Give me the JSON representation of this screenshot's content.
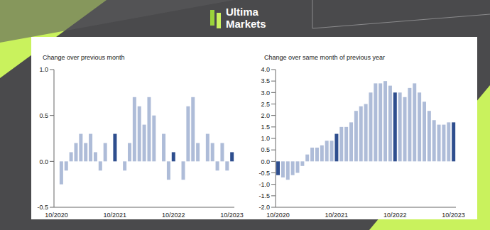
{
  "brand": "Ultima Markets",
  "chart_data": [
    {
      "type": "bar",
      "title": "Change over previous month",
      "categories": [
        "10/2020",
        null,
        null,
        null,
        null,
        null,
        null,
        null,
        null,
        null,
        null,
        null,
        "10/2021",
        null,
        null,
        null,
        null,
        null,
        null,
        null,
        null,
        null,
        null,
        null,
        "10/2022",
        null,
        null,
        null,
        null,
        null,
        null,
        null,
        null,
        null,
        null,
        null,
        "10/2023"
      ],
      "values": [
        0,
        -0.25,
        -0.1,
        0.1,
        0.2,
        0.3,
        0.2,
        0.3,
        0.1,
        -0.1,
        0.2,
        0,
        0.3,
        0,
        -0.1,
        0.2,
        0.7,
        0.6,
        0.4,
        0.7,
        0.5,
        0,
        0.3,
        -0.2,
        0.1,
        0,
        -0.2,
        0.6,
        0.7,
        0.2,
        0,
        0.3,
        0.2,
        -0.1,
        0.2,
        -0.1,
        0.1
      ],
      "colors": [
        "#2e4e8e",
        "#aebcd8",
        "#aebcd8",
        "#aebcd8",
        "#aebcd8",
        "#aebcd8",
        "#aebcd8",
        "#aebcd8",
        "#aebcd8",
        "#aebcd8",
        "#aebcd8",
        "#aebcd8",
        "#2e4e8e",
        "#aebcd8",
        "#aebcd8",
        "#aebcd8",
        "#aebcd8",
        "#aebcd8",
        "#aebcd8",
        "#aebcd8",
        "#aebcd8",
        "#aebcd8",
        "#aebcd8",
        "#aebcd8",
        "#2e4e8e",
        "#aebcd8",
        "#aebcd8",
        "#aebcd8",
        "#aebcd8",
        "#aebcd8",
        "#aebcd8",
        "#aebcd8",
        "#aebcd8",
        "#aebcd8",
        "#aebcd8",
        "#aebcd8",
        "#2e4e8e"
      ],
      "ylim": [
        -0.5,
        1.0
      ],
      "yticks": [
        -0.5,
        {
          "value": 0,
          "label": "0.0"
        },
        0.5,
        {
          "value": 1,
          "label": "1.0"
        }
      ]
    },
    {
      "type": "bar",
      "title": "Change over same month of previous year",
      "categories": [
        "10/2020",
        null,
        null,
        null,
        null,
        null,
        null,
        null,
        null,
        null,
        null,
        null,
        "10/2021",
        null,
        null,
        null,
        null,
        null,
        null,
        null,
        null,
        null,
        null,
        null,
        "10/2022",
        null,
        null,
        null,
        null,
        null,
        null,
        null,
        null,
        null,
        null,
        null,
        "10/2023"
      ],
      "values": [
        -0.6,
        -0.7,
        -0.8,
        -0.6,
        -0.5,
        -0.2,
        0.3,
        0.6,
        0.6,
        0.7,
        0.9,
        0.9,
        1.2,
        1.5,
        1.5,
        1.7,
        2.2,
        2.4,
        2.5,
        3.0,
        3.4,
        3.4,
        3.5,
        3.3,
        3.0,
        3.0,
        2.8,
        3.2,
        3.4,
        3.0,
        2.6,
        2.2,
        1.8,
        1.6,
        1.6,
        1.7,
        1.7
      ],
      "colors": [
        "#2e4e8e",
        "#aebcd8",
        "#aebcd8",
        "#aebcd8",
        "#aebcd8",
        "#aebcd8",
        "#aebcd8",
        "#aebcd8",
        "#aebcd8",
        "#aebcd8",
        "#aebcd8",
        "#aebcd8",
        "#2e4e8e",
        "#aebcd8",
        "#aebcd8",
        "#aebcd8",
        "#aebcd8",
        "#aebcd8",
        "#aebcd8",
        "#aebcd8",
        "#aebcd8",
        "#aebcd8",
        "#aebcd8",
        "#aebcd8",
        "#2e4e8e",
        "#aebcd8",
        "#aebcd8",
        "#aebcd8",
        "#aebcd8",
        "#aebcd8",
        "#aebcd8",
        "#aebcd8",
        "#aebcd8",
        "#aebcd8",
        "#aebcd8",
        "#aebcd8",
        "#2e4e8e"
      ],
      "ylim": [
        -2.0,
        4.0
      ],
      "yticks": [
        {
          "value": -2,
          "label": "-2.0"
        },
        -1.5,
        {
          "value": -1,
          "label": "-1.0"
        },
        -0.5,
        {
          "value": 0,
          "label": "0.0"
        },
        0.5,
        {
          "value": 1,
          "label": "1.0"
        },
        1.5,
        {
          "value": 2,
          "label": "2.0"
        },
        2.5,
        {
          "value": 3,
          "label": "3.0"
        },
        3.5,
        {
          "value": 4,
          "label": "4.0"
        }
      ]
    }
  ]
}
